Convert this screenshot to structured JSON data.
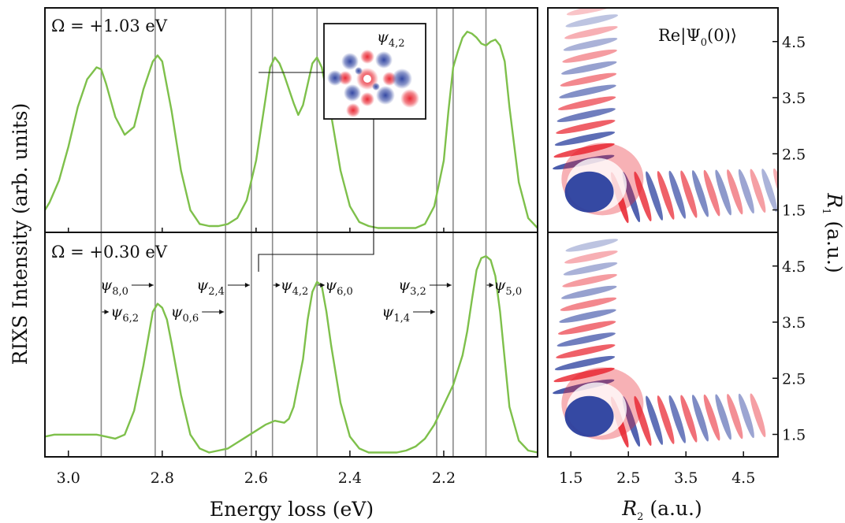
{
  "chart_data": [
    {
      "type": "line",
      "panel": "top-left",
      "label_prefix": "Ω = ",
      "label_value": "+1.03 eV",
      "x_reversed": true,
      "xlim": [
        3.05,
        2.0
      ],
      "x_ticks": [
        "3.0",
        "2.8",
        "2.6",
        "2.4",
        "2.2"
      ],
      "x_tick_values": [
        3.0,
        2.8,
        2.6,
        2.4,
        2.2
      ],
      "ylim": [
        0,
        1.1
      ],
      "state_lines_ev": [
        2.93,
        2.815,
        2.665,
        2.61,
        2.565,
        2.47,
        2.215,
        2.18,
        2.11
      ],
      "series": [
        {
          "x": [
            3.05,
            3.04,
            3.02,
            3.0,
            2.98,
            2.96,
            2.94,
            2.93,
            2.92,
            2.9,
            2.88,
            2.86,
            2.84,
            2.82,
            2.81,
            2.8,
            2.78,
            2.76,
            2.74,
            2.72,
            2.7,
            2.68,
            2.66,
            2.64,
            2.62,
            2.6,
            2.58,
            2.57,
            2.56,
            2.55,
            2.54,
            2.52,
            2.51,
            2.5,
            2.48,
            2.47,
            2.46,
            2.44,
            2.42,
            2.4,
            2.38,
            2.36,
            2.34,
            2.32,
            2.3,
            2.28,
            2.26,
            2.24,
            2.22,
            2.2,
            2.19,
            2.18,
            2.17,
            2.16,
            2.15,
            2.14,
            2.13,
            2.12,
            2.11,
            2.1,
            2.09,
            2.08,
            2.07,
            2.06,
            2.04,
            2.02,
            2.0
          ],
          "y": [
            0.1,
            0.14,
            0.25,
            0.42,
            0.62,
            0.76,
            0.82,
            0.81,
            0.74,
            0.57,
            0.48,
            0.52,
            0.71,
            0.85,
            0.88,
            0.85,
            0.6,
            0.3,
            0.1,
            0.03,
            0.02,
            0.02,
            0.03,
            0.06,
            0.15,
            0.35,
            0.66,
            0.82,
            0.87,
            0.84,
            0.78,
            0.64,
            0.58,
            0.63,
            0.84,
            0.87,
            0.82,
            0.58,
            0.3,
            0.12,
            0.04,
            0.02,
            0.01,
            0.01,
            0.01,
            0.01,
            0.01,
            0.03,
            0.12,
            0.35,
            0.6,
            0.82,
            0.9,
            0.97,
            1.0,
            0.99,
            0.97,
            0.94,
            0.93,
            0.95,
            0.96,
            0.93,
            0.85,
            0.62,
            0.24,
            0.06,
            0.01
          ]
        }
      ]
    },
    {
      "type": "line",
      "panel": "bottom-left",
      "label_prefix": "Ω = ",
      "label_value": "+0.30 eV",
      "x_reversed": true,
      "xlim": [
        3.05,
        2.0
      ],
      "ylim": [
        0,
        1.1
      ],
      "state_lines_ev": [
        2.93,
        2.815,
        2.665,
        2.61,
        2.565,
        2.47,
        2.215,
        2.18,
        2.11
      ],
      "series": [
        {
          "x": [
            3.05,
            3.03,
            3.0,
            2.97,
            2.94,
            2.92,
            2.9,
            2.88,
            2.86,
            2.84,
            2.82,
            2.81,
            2.8,
            2.79,
            2.78,
            2.76,
            2.74,
            2.72,
            2.7,
            2.68,
            2.66,
            2.64,
            2.62,
            2.6,
            2.58,
            2.56,
            2.54,
            2.53,
            2.52,
            2.5,
            2.49,
            2.48,
            2.47,
            2.46,
            2.45,
            2.44,
            2.42,
            2.4,
            2.38,
            2.36,
            2.34,
            2.32,
            2.3,
            2.28,
            2.26,
            2.24,
            2.22,
            2.2,
            2.18,
            2.16,
            2.15,
            2.14,
            2.13,
            2.12,
            2.11,
            2.1,
            2.09,
            2.08,
            2.07,
            2.06,
            2.04,
            2.02,
            2.0
          ],
          "y": [
            0.09,
            0.1,
            0.1,
            0.1,
            0.1,
            0.09,
            0.08,
            0.1,
            0.22,
            0.45,
            0.72,
            0.76,
            0.74,
            0.68,
            0.56,
            0.3,
            0.1,
            0.03,
            0.01,
            0.02,
            0.03,
            0.06,
            0.09,
            0.12,
            0.15,
            0.17,
            0.16,
            0.18,
            0.24,
            0.48,
            0.68,
            0.82,
            0.87,
            0.85,
            0.72,
            0.55,
            0.26,
            0.09,
            0.03,
            0.01,
            0.01,
            0.01,
            0.01,
            0.02,
            0.04,
            0.08,
            0.15,
            0.25,
            0.35,
            0.5,
            0.62,
            0.78,
            0.93,
            0.99,
            1.0,
            0.98,
            0.9,
            0.72,
            0.48,
            0.24,
            0.07,
            0.02,
            0.01
          ]
        }
      ],
      "state_labels": [
        {
          "base": "ψ",
          "sub": "8,0",
          "arrow": "right",
          "line_index": 1,
          "row": 1
        },
        {
          "base": "ψ",
          "sub": "6,2",
          "arrow": "left",
          "line_index": 0,
          "row": 2
        },
        {
          "base": "ψ",
          "sub": "2,4",
          "arrow": "right",
          "line_index": 3,
          "row": 1
        },
        {
          "base": "ψ",
          "sub": "0,6",
          "arrow": "right",
          "line_index": 2,
          "row": 2
        },
        {
          "base": "ψ",
          "sub": "4,2",
          "arrow": "left",
          "line_index": 4,
          "row": 1
        },
        {
          "base": "ψ",
          "sub": "6,0",
          "arrow": "left",
          "line_index": 5,
          "row": 1
        },
        {
          "base": "ψ",
          "sub": "3,2",
          "arrow": "right",
          "line_index": 7,
          "row": 1
        },
        {
          "base": "ψ",
          "sub": "1,4",
          "arrow": "right",
          "line_index": 6,
          "row": 2
        },
        {
          "base": "ψ",
          "sub": "5,0",
          "arrow": "left",
          "line_index": 8,
          "row": 1
        }
      ]
    },
    {
      "type": "heatmap",
      "panel": "right",
      "title": "Re|Ψ",
      "title_sub": "0",
      "title_tail": "(0)⟩",
      "xlabel_var": "R",
      "xlabel_sub": "2",
      "xlabel_unit": " (a.u.)",
      "ylabel_var": "R",
      "ylabel_sub": "1",
      "ylabel_unit": " (a.u.)",
      "x_ticks": [
        "1.5",
        "2.5",
        "3.5",
        "4.5"
      ],
      "x_tick_values": [
        1.5,
        2.5,
        3.5,
        4.5
      ],
      "y_ticks": [
        "1.5",
        "2.5",
        "3.5",
        "4.5"
      ],
      "y_tick_values": [
        1.5,
        2.5,
        3.5,
        4.5
      ],
      "xlim": [
        1.1,
        5.1
      ],
      "ylim": [
        1.1,
        5.1
      ],
      "colors": {
        "positive": "#e8202c",
        "negative": "#2a3f9e"
      }
    }
  ],
  "inset": {
    "base": "ψ",
    "sub": "4,2"
  },
  "axes": {
    "xlabel": "Energy loss (eV)",
    "ylabel": "RIXS Intensity (arb. units)"
  }
}
